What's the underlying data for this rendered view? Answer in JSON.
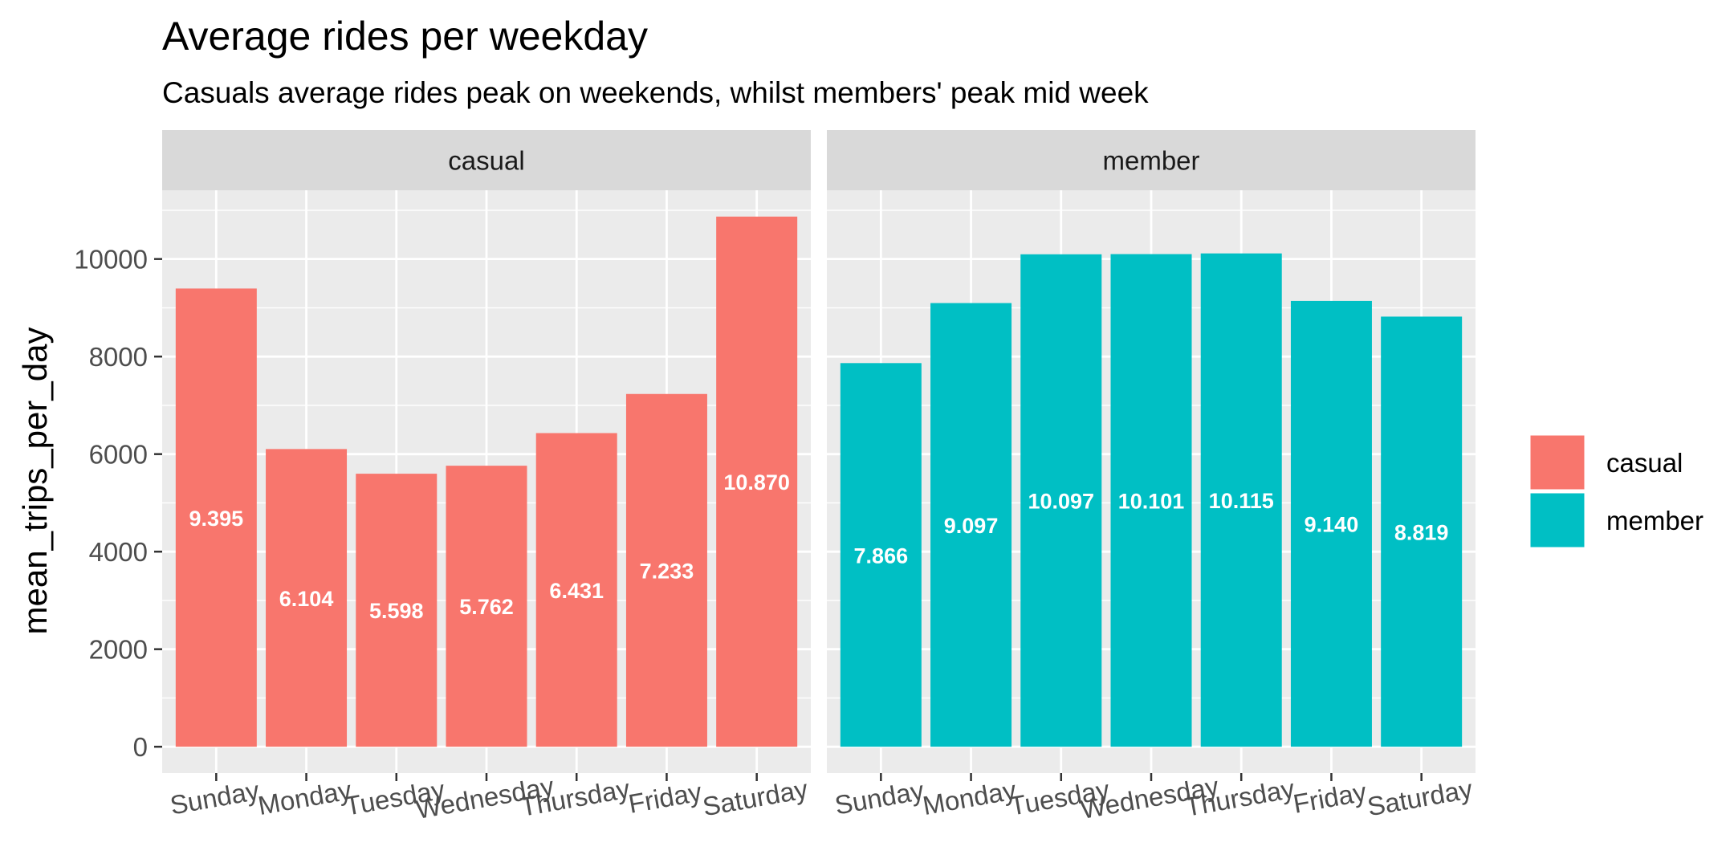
{
  "chart_data": {
    "type": "bar",
    "title": "Average rides per weekday",
    "subtitle": "Casuals average rides peak on weekends, whilst members' peak mid week",
    "xlabel": "",
    "ylabel": "mean_trips_per_day",
    "ylim": [
      0,
      11000
    ],
    "yticks": [
      "0",
      "2000",
      "4000",
      "6000",
      "8000",
      "10000"
    ],
    "ytick_values": [
      0,
      2000,
      4000,
      6000,
      8000,
      10000
    ],
    "grid": true,
    "legend_position": "right",
    "categories": [
      "Sunday",
      "Monday",
      "Tuesday",
      "Wednesday",
      "Thursday",
      "Friday",
      "Saturday"
    ],
    "series": [
      {
        "name": "casual",
        "color": "#F8766D",
        "values": [
          9395,
          6104,
          5598,
          5762,
          6431,
          7233,
          10870
        ],
        "labels": [
          "9.395",
          "6.104",
          "5.598",
          "5.762",
          "6.431",
          "7.233",
          "10.870"
        ]
      },
      {
        "name": "member",
        "color": "#00BFC4",
        "values": [
          7866,
          9097,
          10097,
          10101,
          10115,
          9140,
          8819
        ],
        "labels": [
          "7.866",
          "9.097",
          "10.097",
          "10.101",
          "10.115",
          "9.140",
          "8.819"
        ]
      }
    ]
  },
  "colors": {
    "panel_background": "#EBEBEB",
    "strip_background": "#D9D9D9",
    "grid": "#FFFFFF"
  }
}
